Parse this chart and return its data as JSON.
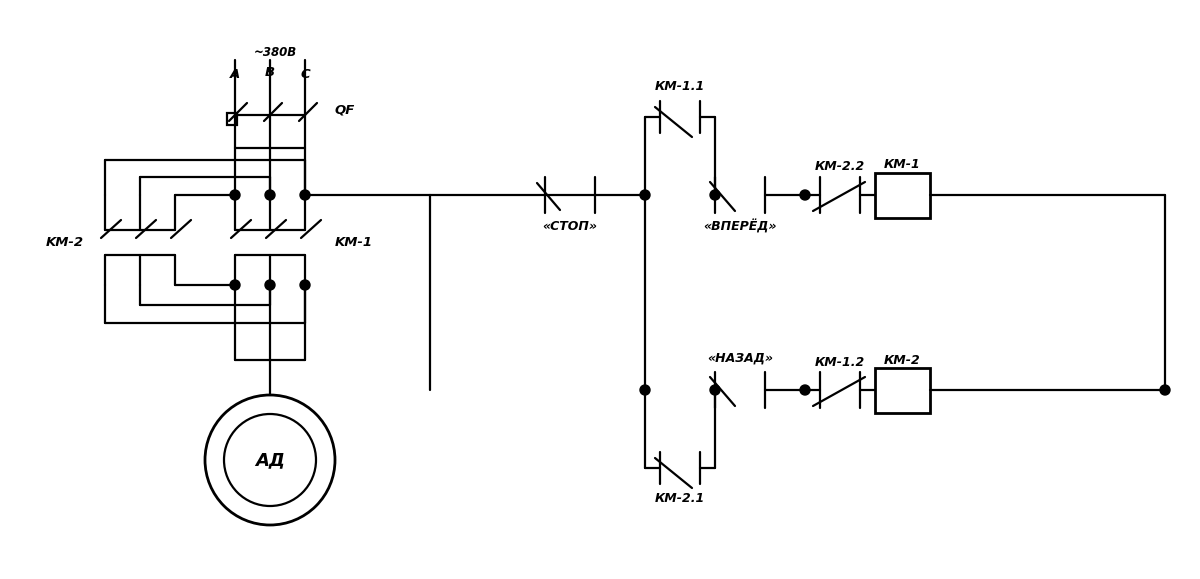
{
  "bg_color": "#ffffff",
  "lc": "#000000",
  "lw": 1.6,
  "lw_thick": 2.0,
  "labels": {
    "voltage": "~380B",
    "A": "A",
    "B": "B",
    "C": "C",
    "QF": "QF",
    "KM1_pwr": "KM-1",
    "KM2_pwr": "KM-2",
    "AD": "АД",
    "STOP": "«СТОП»",
    "FWD": "«ВПЕРЁД»",
    "BWD": "«НАЗАД»",
    "KM11": "КМ-1.1",
    "KM21": "КМ-2.1",
    "KM22": "КМ-2.2",
    "KM12": "КМ-1.2",
    "KM1_coil": "КМ-1",
    "KM2_coil": "КМ-2"
  }
}
